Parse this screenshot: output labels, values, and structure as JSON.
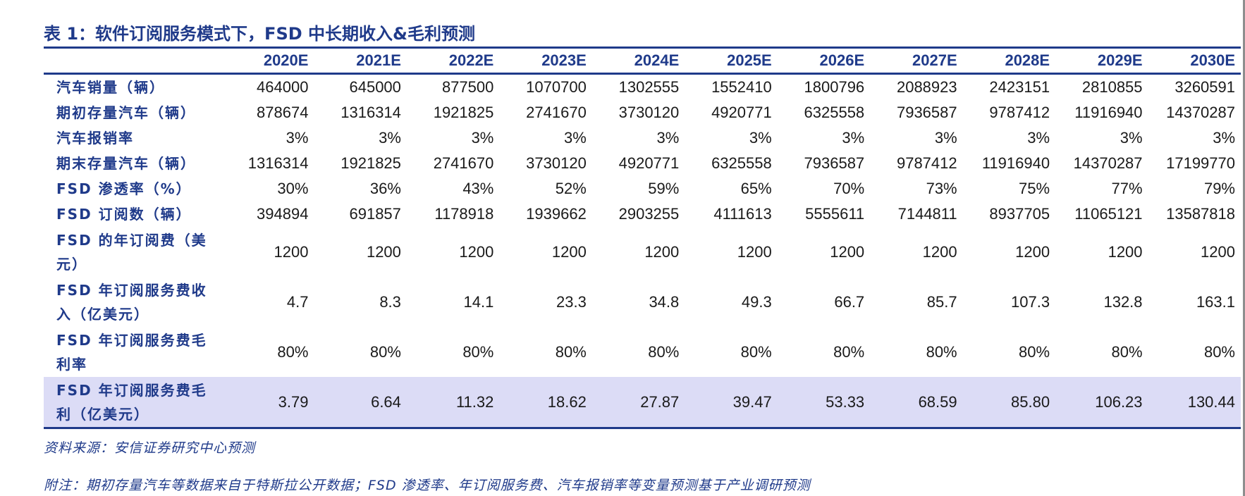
{
  "title": "表 1：软件订阅服务模式下，FSD 中长期收入&毛利预测",
  "table": {
    "columns": [
      "2020E",
      "2021E",
      "2022E",
      "2023E",
      "2024E",
      "2025E",
      "2026E",
      "2027E",
      "2028E",
      "2029E",
      "2030E"
    ],
    "rows": [
      {
        "label": "汽车销量（辆）",
        "values": [
          "464000",
          "645000",
          "877500",
          "1070700",
          "1302555",
          "1552410",
          "1800796",
          "2088923",
          "2423151",
          "2810855",
          "3260591"
        ]
      },
      {
        "label": "期初存量汽车（辆）",
        "values": [
          "878674",
          "1316314",
          "1921825",
          "2741670",
          "3730120",
          "4920771",
          "6325558",
          "7936587",
          "9787412",
          "11916940",
          "14370287"
        ]
      },
      {
        "label": "汽车报销率",
        "values": [
          "3%",
          "3%",
          "3%",
          "3%",
          "3%",
          "3%",
          "3%",
          "3%",
          "3%",
          "3%",
          "3%"
        ]
      },
      {
        "label": "期末存量汽车（辆）",
        "values": [
          "1316314",
          "1921825",
          "2741670",
          "3730120",
          "4920771",
          "6325558",
          "7936587",
          "9787412",
          "11916940",
          "14370287",
          "17199770"
        ]
      },
      {
        "label": "FSD 渗透率（%）",
        "values": [
          "30%",
          "36%",
          "43%",
          "52%",
          "59%",
          "65%",
          "70%",
          "73%",
          "75%",
          "77%",
          "79%"
        ]
      },
      {
        "label": "FSD 订阅数（辆）",
        "values": [
          "394894",
          "691857",
          "1178918",
          "1939662",
          "2903255",
          "4111613",
          "5555611",
          "7144811",
          "8937705",
          "11065121",
          "13587818"
        ]
      },
      {
        "label": "FSD 的年订阅费（美元）",
        "values": [
          "1200",
          "1200",
          "1200",
          "1200",
          "1200",
          "1200",
          "1200",
          "1200",
          "1200",
          "1200",
          "1200"
        ]
      },
      {
        "label": "FSD 年订阅服务费收入（亿美元）",
        "values": [
          "4.7",
          "8.3",
          "14.1",
          "23.3",
          "34.8",
          "49.3",
          "66.7",
          "85.7",
          "107.3",
          "132.8",
          "163.1"
        ]
      },
      {
        "label": "FSD 年订阅服务费毛利率",
        "values": [
          "80%",
          "80%",
          "80%",
          "80%",
          "80%",
          "80%",
          "80%",
          "80%",
          "80%",
          "80%",
          "80%"
        ]
      },
      {
        "label": "FSD 年订阅服务费毛利（亿美元）",
        "values": [
          "3.79",
          "6.64",
          "11.32",
          "18.62",
          "27.87",
          "39.47",
          "53.33",
          "68.59",
          "85.80",
          "106.23",
          "130.44"
        ]
      }
    ]
  },
  "source": "资料来源：安信证券研究中心预测",
  "note": "附注：期初存量汽车等数据来自于特斯拉公开数据；FSD 渗透率、年订阅服务费、汽车报销率等变量预测基于产业调研预测",
  "colors": {
    "accent": "#1f3a8a",
    "highlight_row": "#dcdcf6"
  }
}
